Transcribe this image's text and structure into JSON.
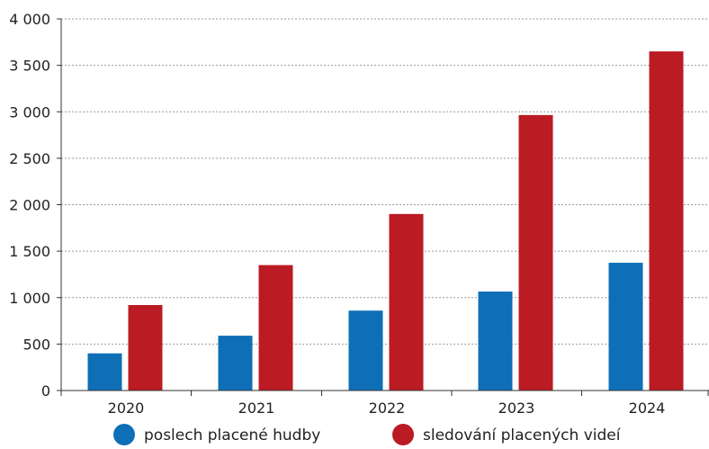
{
  "chart_data": {
    "type": "bar",
    "categories": [
      "2020",
      "2021",
      "2022",
      "2023",
      "2024"
    ],
    "series": [
      {
        "name": "poslech placené hudby",
        "color": "#0e6fb7",
        "values": [
          400,
          590,
          860,
          1065,
          1375
        ]
      },
      {
        "name": "sledování placených videí",
        "color": "#bb1b23",
        "values": [
          920,
          1350,
          1900,
          2965,
          3650
        ]
      }
    ],
    "y_ticks": [
      "0",
      "500",
      "1 000",
      "1 500",
      "2 000",
      "2 500",
      "3 000",
      "3 500",
      "4 000"
    ],
    "y_tick_values": [
      0,
      500,
      1000,
      1500,
      2000,
      2500,
      3000,
      3500,
      4000
    ],
    "ylim": [
      0,
      4000
    ],
    "grid": true,
    "grid_style": "dashed",
    "legend_position": "bottom"
  }
}
